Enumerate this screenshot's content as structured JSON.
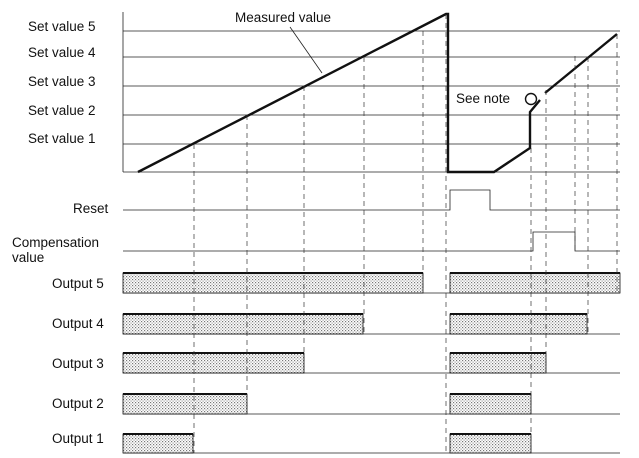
{
  "set_value_labels": [
    "Set value 5",
    "Set value 4",
    "Set value 3",
    "Set value 2",
    "Set value 1"
  ],
  "measured_value_label": "Measured value",
  "note_label": "See note",
  "reset_label": "Reset",
  "compensation_label": [
    "Compensation",
    "value"
  ],
  "output_labels": [
    "Output 5",
    "Output 4",
    "Output 3",
    "Output 2",
    "Output 1"
  ]
}
